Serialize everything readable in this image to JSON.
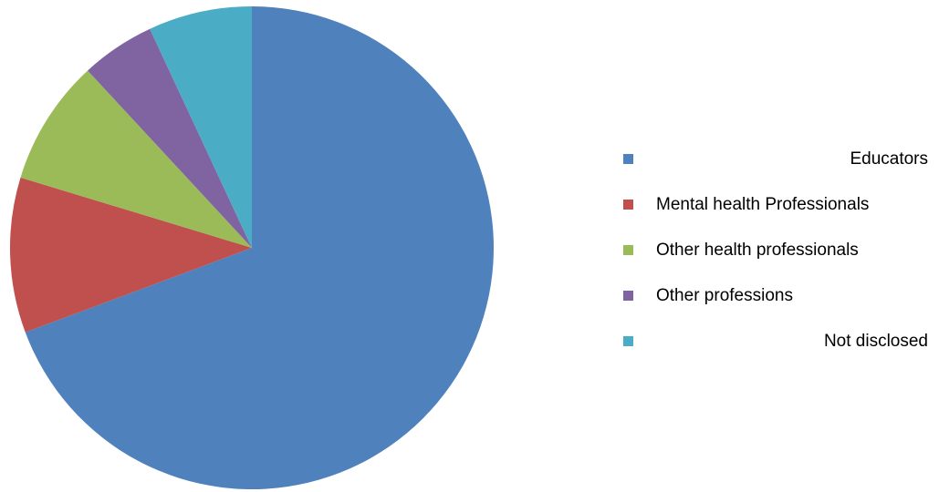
{
  "chart_data": {
    "type": "pie",
    "title": "",
    "start_angle_deg": 0,
    "direction": "clockwise",
    "slices": [
      {
        "label": "Educators",
        "value": 70,
        "color": "#4F81BD"
      },
      {
        "label": "Mental health Professionals",
        "value": 10.5,
        "color": "#C0504D"
      },
      {
        "label": "Other health professionals",
        "value": 8.5,
        "color": "#9BBB59"
      },
      {
        "label": "Other professions",
        "value": 5,
        "color": "#8064A2"
      },
      {
        "label": "Not disclosed",
        "value": 7,
        "color": "#4BACC6"
      }
    ],
    "legend_position": "right"
  }
}
